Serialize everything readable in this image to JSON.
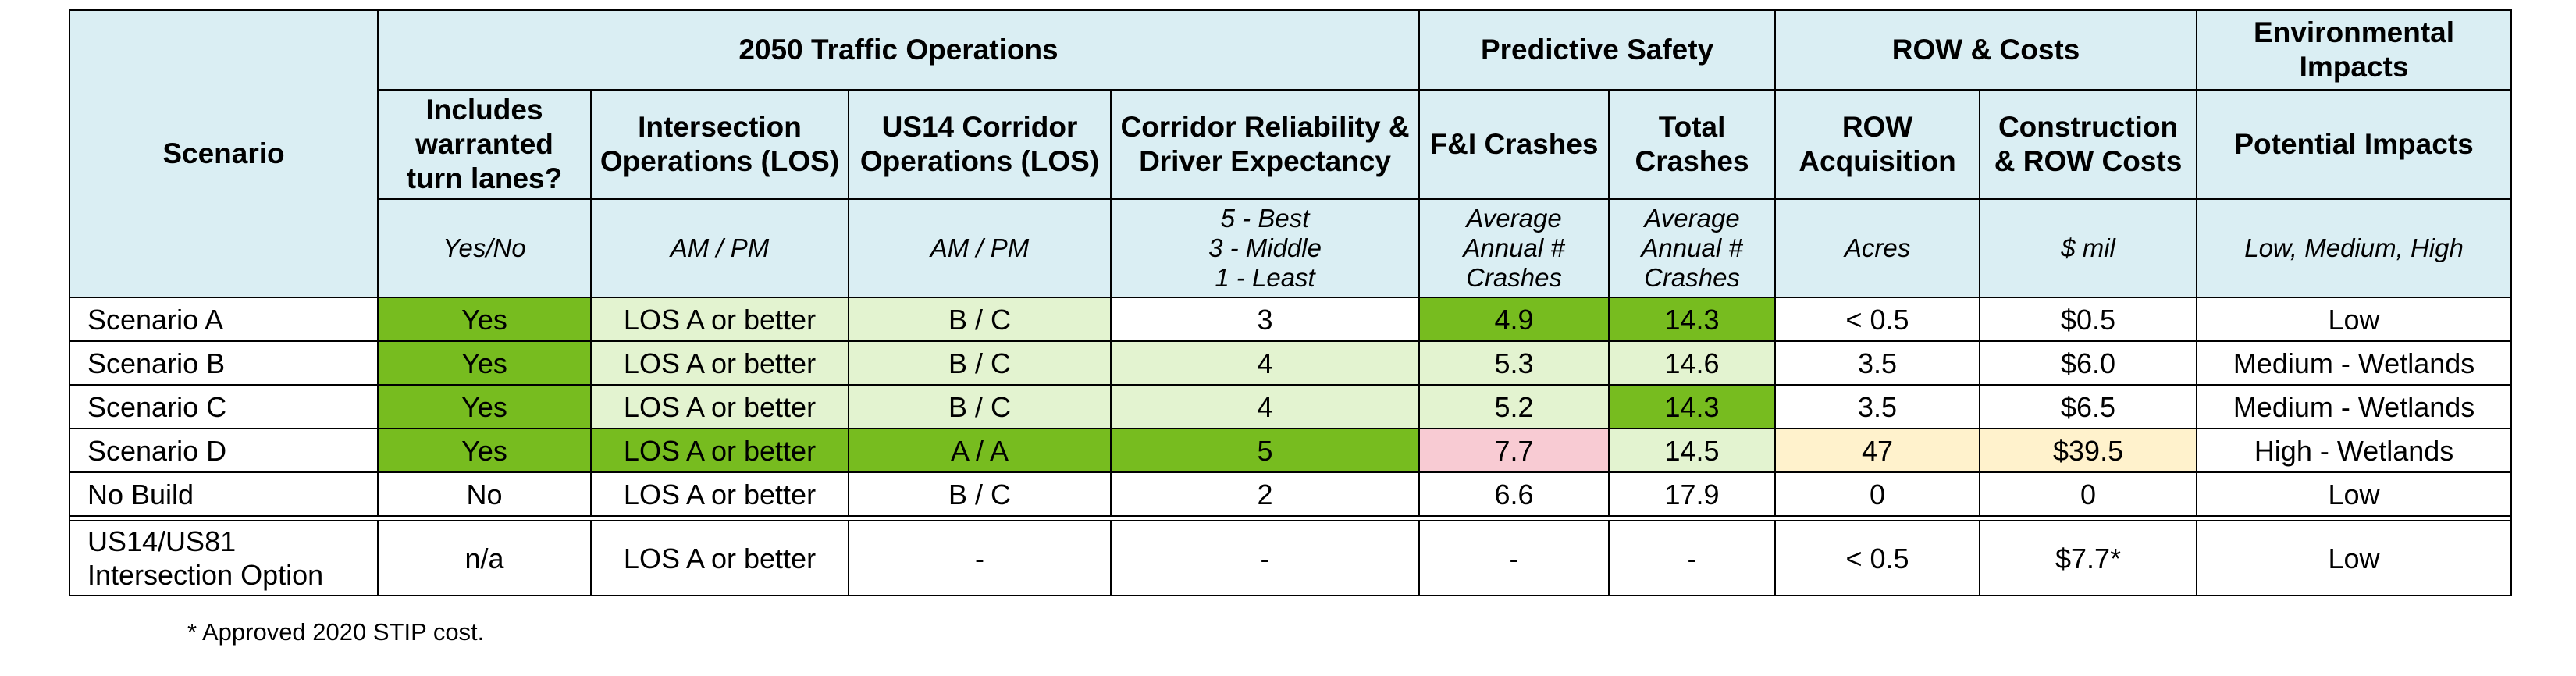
{
  "table": {
    "scenario_header": "Scenario",
    "groups": [
      {
        "label": "2050 Traffic Operations",
        "span": 4
      },
      {
        "label": "Predictive Safety",
        "span": 2
      },
      {
        "label": "ROW & Costs",
        "span": 2
      },
      {
        "label": "Environmental Impacts",
        "span": 1
      }
    ],
    "columns": [
      {
        "label": "Includes warranted turn lanes?",
        "unit": "Yes/No"
      },
      {
        "label": "Intersection Operations (LOS)",
        "unit": "AM / PM"
      },
      {
        "label": "US14 Corridor Operations (LOS)",
        "unit": "AM / PM"
      },
      {
        "label": "Corridor Reliability & Driver Expectancy",
        "unit": "5 - Best\n3 - Middle\n1 - Least"
      },
      {
        "label": "F&I Crashes",
        "unit": "Average Annual # Crashes"
      },
      {
        "label": "Total Crashes",
        "unit": "Average Annual # Crashes"
      },
      {
        "label": "ROW Acquisition",
        "unit": "Acres"
      },
      {
        "label": "Construction & ROW Costs",
        "unit": "$ mil"
      },
      {
        "label": "Potential Impacts",
        "unit": "Low, Medium, High"
      }
    ],
    "rows": [
      {
        "scenario": "Scenario A",
        "cells": [
          "Yes",
          "LOS A or better",
          "B / C",
          "3",
          "4.9",
          "14.3",
          "< 0.5",
          "$0.5",
          "Low"
        ]
      },
      {
        "scenario": "Scenario B",
        "cells": [
          "Yes",
          "LOS A or better",
          "B / C",
          "4",
          "5.3",
          "14.6",
          "3.5",
          "$6.0",
          "Medium - Wetlands"
        ]
      },
      {
        "scenario": "Scenario C",
        "cells": [
          "Yes",
          "LOS A or better",
          "B / C",
          "4",
          "5.2",
          "14.3",
          "3.5",
          "$6.5",
          "Medium - Wetlands"
        ]
      },
      {
        "scenario": "Scenario D",
        "cells": [
          "Yes",
          "LOS A or better",
          "A / A",
          "5",
          "7.7",
          "14.5",
          "47",
          "$39.5",
          "High - Wetlands"
        ]
      },
      {
        "scenario": "No Build",
        "cells": [
          "No",
          "LOS A or better",
          "B / C",
          "2",
          "6.6",
          "17.9",
          "0",
          "0",
          "Low"
        ]
      }
    ],
    "option_row": {
      "scenario": "US14/US81 Intersection Option",
      "cells": [
        "n/a",
        "LOS A or better",
        "-",
        "-",
        "-",
        "-",
        "< 0.5",
        "$7.7*",
        "Low"
      ]
    }
  },
  "cell_colors": {
    "best": "#77bc1f",
    "good": "#e3f3d0",
    "poor": "#f8cbd3",
    "caution": "#fff2cc",
    "neutral": "#ffffff",
    "header": "#daeef3"
  },
  "shading": [
    [
      "best",
      "good",
      "good",
      "neutral",
      "best",
      "best",
      "neutral",
      "neutral",
      "neutral"
    ],
    [
      "best",
      "good",
      "good",
      "good",
      "good",
      "good",
      "neutral",
      "neutral",
      "neutral"
    ],
    [
      "best",
      "good",
      "good",
      "good",
      "good",
      "best",
      "neutral",
      "neutral",
      "neutral"
    ],
    [
      "best",
      "best",
      "best",
      "best",
      "poor",
      "good",
      "caution",
      "caution",
      "neutral"
    ],
    [
      "neutral",
      "neutral",
      "neutral",
      "neutral",
      "neutral",
      "neutral",
      "neutral",
      "neutral",
      "neutral"
    ]
  ],
  "footnote": "* Approved 2020 STIP cost."
}
